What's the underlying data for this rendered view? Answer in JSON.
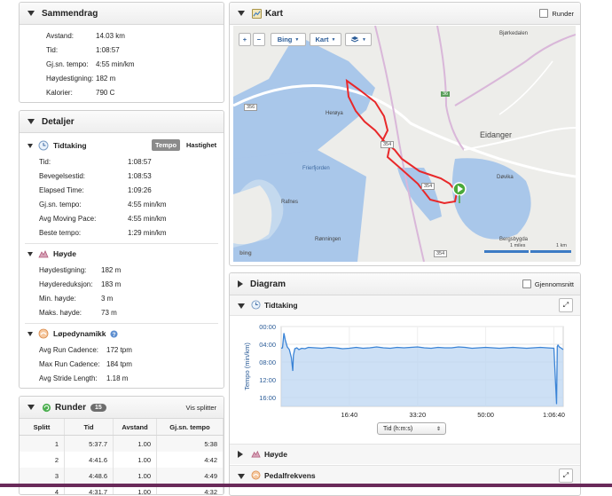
{
  "summary": {
    "title": "Sammendrag",
    "rows": [
      {
        "label": "Avstand:",
        "value": "14.03 km"
      },
      {
        "label": "Tid:",
        "value": "1:08:57"
      },
      {
        "label": "Gj.sn. tempo:",
        "value": "4:55 min/km"
      },
      {
        "label": "Høydestigning:",
        "value": "182 m"
      },
      {
        "label": "Kalorier:",
        "value": "790 C"
      }
    ]
  },
  "details": {
    "title": "Detaljer",
    "timing": {
      "title": "Tidtaking",
      "toggle_on": "Tempo",
      "toggle_off": "Hastighet",
      "rows": [
        {
          "label": "Tid:",
          "value": "1:08:57"
        },
        {
          "label": "Bevegelsestid:",
          "value": "1:08:53"
        },
        {
          "label": "Elapsed Time:",
          "value": "1:09:26"
        },
        {
          "label": "Gj.sn. tempo:",
          "value": "4:55 min/km"
        },
        {
          "label": "Avg Moving Pace:",
          "value": "4:55 min/km"
        },
        {
          "label": "Beste tempo:",
          "value": "1:29 min/km"
        }
      ]
    },
    "elevation": {
      "title": "Høyde",
      "rows": [
        {
          "label": "Høydestigning:",
          "value": "182 m"
        },
        {
          "label": "Høydereduksjon:",
          "value": "183 m"
        },
        {
          "label": "Min. høyde:",
          "value": "3 m"
        },
        {
          "label": "Maks. høyde:",
          "value": "73 m"
        }
      ]
    },
    "dynamics": {
      "title": "Løpedynamikk",
      "rows": [
        {
          "label": "Avg Run Cadence:",
          "value": "172 tpm"
        },
        {
          "label": "Max Run Cadence:",
          "value": "184 tpm"
        },
        {
          "label": "Avg Stride Length:",
          "value": "1.18 m"
        }
      ]
    }
  },
  "laps": {
    "title": "Runder",
    "count": "15",
    "show_splits": "Vis splitter",
    "columns": [
      "Splitt",
      "Tid",
      "Avstand",
      "Gj.sn. tempo"
    ],
    "rows": [
      [
        "1",
        "5:37.7",
        "1.00",
        "5:38"
      ],
      [
        "2",
        "4:41.6",
        "1.00",
        "4:42"
      ],
      [
        "3",
        "4:48.6",
        "1.00",
        "4:49"
      ],
      [
        "4",
        "4:31.7",
        "1.00",
        "4:32"
      ]
    ]
  },
  "map": {
    "title": "Kart",
    "laps_checkbox": "Runder",
    "provider": "Bing",
    "type": "Kart",
    "attribution": "bing",
    "scale_miles": "1 miles",
    "scale_km": "1 km",
    "places": {
      "bjorkedalen": "Bjørkedalen",
      "heroya": "Herøya",
      "eidanger": "Eidanger",
      "davika": "Døvika",
      "frierfjorden": "Frierfjorden",
      "rafnes": "Rafnes",
      "ronningen": "Rønningen",
      "bergsbygda": "Bergsbygda",
      "road356": "356",
      "road36": "36",
      "road354a": "354",
      "road354b": "354",
      "road354c": "354"
    }
  },
  "diagram": {
    "title": "Diagram",
    "avg_checkbox": "Gjennomsnitt",
    "timing_title": "Tidtaking",
    "x_selector": "Tid (h:m:s)",
    "elevation_title": "Høyde",
    "cadence_title": "Pedalfrekvens"
  },
  "chart_data": {
    "type": "area",
    "ylabel": "Tempo (min/km)",
    "y_reversed": true,
    "ylim": [
      0,
      18
    ],
    "yticks": [
      "00:00",
      "04:00",
      "08:00",
      "12:00",
      "16:00"
    ],
    "xlim": [
      0,
      4137
    ],
    "xticks": [
      "16:40",
      "33:20",
      "50:00",
      "1:06:40"
    ],
    "xtick_seconds": [
      1000,
      2000,
      3000,
      4000
    ],
    "x": [
      0,
      20,
      40,
      60,
      90,
      120,
      150,
      170,
      180,
      200,
      230,
      260,
      300,
      350,
      400,
      500,
      600,
      700,
      800,
      900,
      1000,
      1100,
      1200,
      1300,
      1400,
      1500,
      1600,
      1700,
      1800,
      1900,
      2000,
      2100,
      2200,
      2300,
      2400,
      2500,
      2600,
      2700,
      2800,
      2900,
      3000,
      3100,
      3200,
      3300,
      3400,
      3500,
      3600,
      3700,
      3800,
      3900,
      4000,
      4040,
      4050,
      4060,
      4080,
      4100,
      4137
    ],
    "series": [
      {
        "values": [
          4.9,
          4.8,
          1.5,
          3.0,
          4.6,
          5.2,
          7.0,
          10.0,
          6.5,
          5.0,
          4.8,
          5.2,
          4.9,
          5.0,
          4.7,
          4.8,
          4.9,
          4.7,
          4.8,
          5.0,
          4.9,
          4.7,
          4.9,
          4.8,
          4.6,
          4.8,
          4.9,
          4.7,
          4.8,
          4.7,
          4.6,
          4.8,
          4.9,
          4.7,
          4.8,
          4.8,
          4.6,
          4.7,
          4.9,
          4.8,
          4.7,
          4.8,
          4.9,
          4.8,
          4.7,
          4.8,
          4.9,
          4.8,
          4.7,
          4.8,
          4.9,
          17.5,
          4.5,
          4.2,
          4.6,
          4.8,
          5.2
        ]
      }
    ],
    "color": "#3b84d6"
  }
}
